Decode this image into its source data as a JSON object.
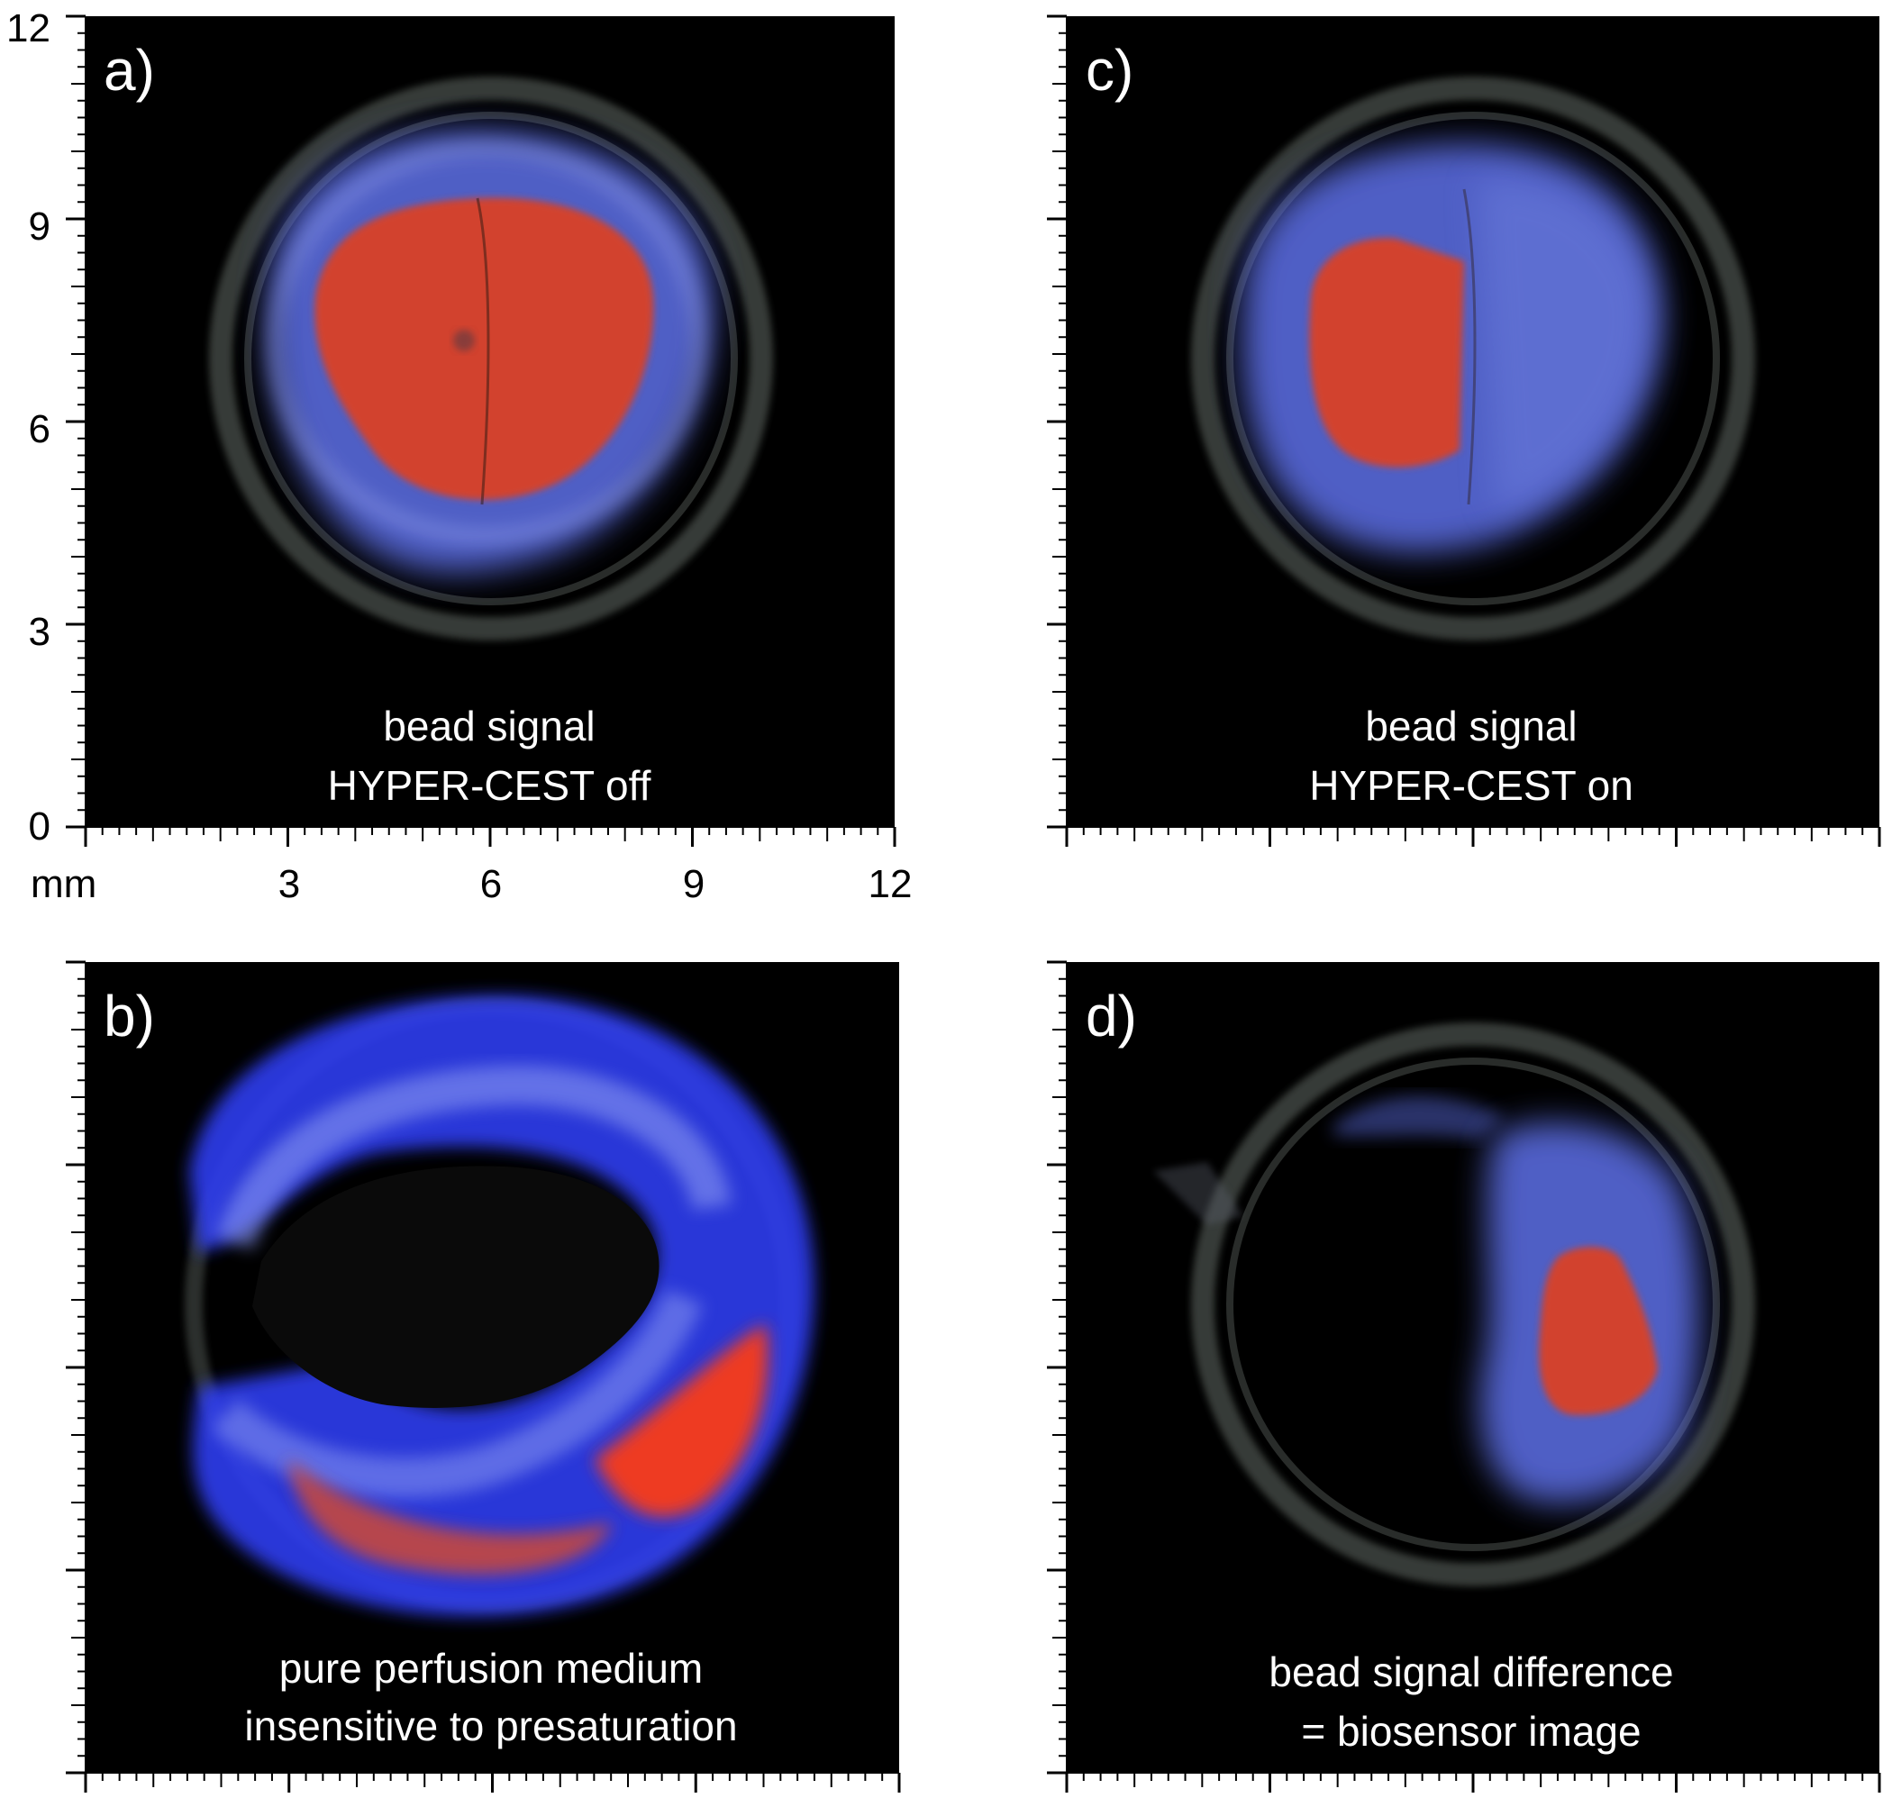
{
  "figure": {
    "axis_unit": "mm",
    "y_ticks": [
      "12",
      "9",
      "6",
      "3",
      "0"
    ],
    "x_ticks": [
      "3",
      "6",
      "9",
      "12"
    ],
    "panels": [
      {
        "id": "a",
        "label": "a)",
        "caption_lines": [
          "bead signal",
          "HYPER-CEST off"
        ]
      },
      {
        "id": "b",
        "label": "b)",
        "caption_lines": [
          "pure perfusion medium",
          "insensitive to presaturation"
        ]
      },
      {
        "id": "c",
        "label": "c)",
        "caption_lines": [
          "bead signal",
          "HYPER-CEST on"
        ]
      },
      {
        "id": "d",
        "label": "d)",
        "caption_lines": [
          "bead signal difference",
          "= biosensor image"
        ]
      }
    ],
    "colors": {
      "background": "#000000",
      "signal_high": "#d2432e",
      "signal_low": "#5d6fe8",
      "ring": "#5a5f5c",
      "text": "#ffffff"
    }
  }
}
